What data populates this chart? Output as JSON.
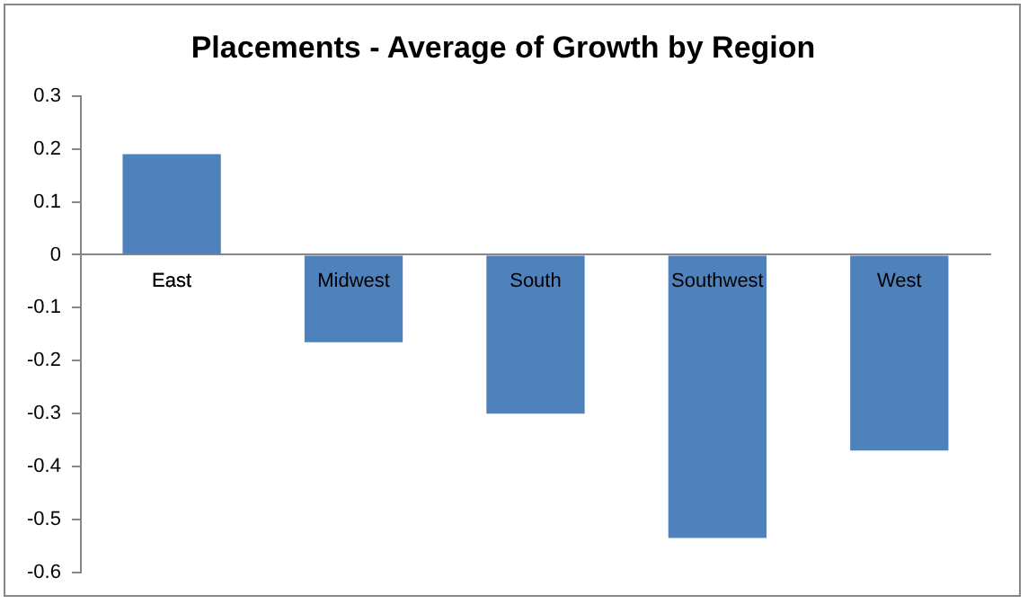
{
  "chart_data": {
    "type": "bar",
    "title": "Placements - Average of Growth by Region",
    "categories": [
      "East",
      "Midwest",
      "South",
      "Southwest",
      "West"
    ],
    "values": [
      0.19,
      -0.165,
      -0.3,
      -0.535,
      -0.37
    ],
    "color": "#4f81bd",
    "ylim": [
      -0.6,
      0.3
    ],
    "yticks": [
      -0.6,
      -0.5,
      -0.4,
      -0.3,
      -0.2,
      -0.1,
      0,
      0.1,
      0.2,
      0.3
    ],
    "grid": false,
    "legend": false
  }
}
